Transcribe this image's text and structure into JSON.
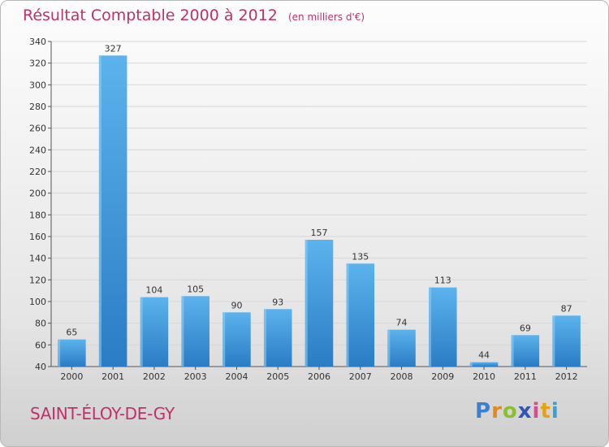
{
  "title": "Résultat Comptable 2000 à 2012",
  "subtitle": "(en milliers d'€)",
  "commune": "SAINT-ÉLOY-DE-GY",
  "logo": {
    "text": "Proxiti",
    "letters": [
      {
        "ch": "P",
        "color": "#3a7fd0"
      },
      {
        "ch": "r",
        "color": "#e08a1e"
      },
      {
        "ch": "o",
        "color": "#8bbf2e"
      },
      {
        "ch": "x",
        "color": "#2f55b7"
      },
      {
        "ch": "i",
        "color": "#d94c8e"
      },
      {
        "ch": "t",
        "color": "#e3a21d"
      },
      {
        "ch": "i",
        "color": "#3aa0d0"
      }
    ]
  },
  "colors": {
    "bar_top": "#5cb3ec",
    "bar_bottom": "#2a7cc4",
    "title": "#c0306a",
    "grid": "#d7d7d7"
  },
  "chart_data": {
    "type": "bar",
    "categories": [
      "2000",
      "2001",
      "2002",
      "2003",
      "2004",
      "2005",
      "2006",
      "2007",
      "2008",
      "2009",
      "2010",
      "2011",
      "2012"
    ],
    "values": [
      65,
      327,
      104,
      105,
      90,
      93,
      157,
      135,
      74,
      113,
      44,
      69,
      87
    ],
    "ylim": [
      40,
      340
    ],
    "ytick_step": 20,
    "grid": true,
    "xlabel": "",
    "ylabel": ""
  }
}
